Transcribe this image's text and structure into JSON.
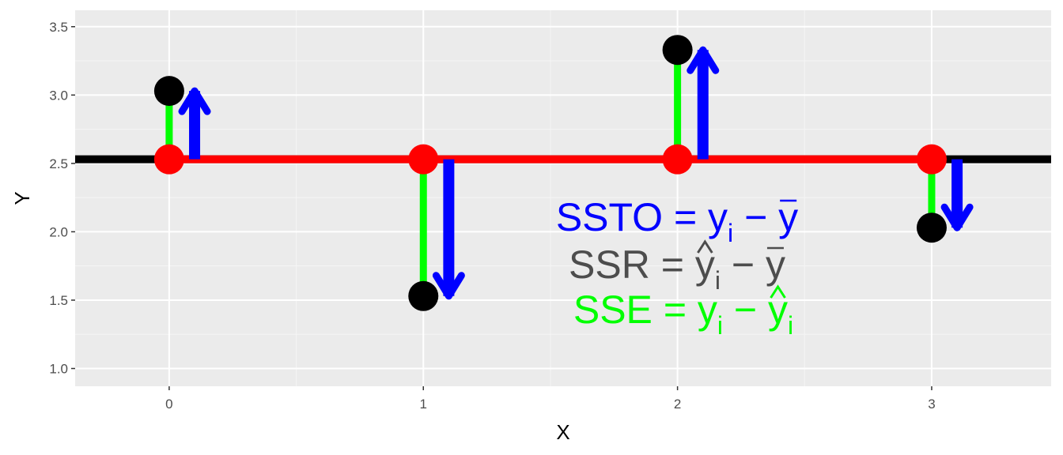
{
  "chart_data": {
    "type": "scatter",
    "title": "",
    "xlabel": "X",
    "ylabel": "Y",
    "xlim": [
      -0.37,
      3.47
    ],
    "ylim": [
      0.87,
      3.62
    ],
    "x_ticks": [
      0,
      1,
      2,
      3
    ],
    "x_tick_labels": [
      "0",
      "1",
      "2",
      "3"
    ],
    "y_ticks": [
      1.0,
      1.5,
      2.0,
      2.5,
      3.0,
      3.5
    ],
    "y_tick_labels": [
      "1.0",
      "1.5",
      "2.0",
      "2.5",
      "3.0",
      "3.5"
    ],
    "grid": true,
    "mean_y": 2.53,
    "observed": {
      "x": [
        0,
        1,
        2,
        3
      ],
      "y": [
        3.03,
        1.53,
        3.33,
        2.03
      ],
      "color": "#000000"
    },
    "fitted": {
      "x": [
        0,
        1,
        2,
        3
      ],
      "y": [
        2.53,
        2.53,
        2.53,
        2.53
      ],
      "color": "#ff0000"
    },
    "sse_segments": {
      "color": "#00ff00"
    },
    "ssto_arrows": {
      "color": "#0000ff",
      "x_offset": 0.1
    },
    "mean_line": {
      "color": "#000000"
    },
    "annotations": [
      {
        "lhs": "SSTO",
        "eq": "=",
        "t1": "y",
        "t1_sub": "i",
        "minus": "−",
        "t2": "y",
        "t2_sub": "",
        "t1_hat": false,
        "t1_bar": false,
        "t2_hat": false,
        "t2_bar": true,
        "color": "#0000ff"
      },
      {
        "lhs": "SSR",
        "eq": "=",
        "t1": "y",
        "t1_sub": "i",
        "minus": "−",
        "t2": "y",
        "t2_sub": "",
        "t1_hat": true,
        "t1_bar": false,
        "t2_hat": false,
        "t2_bar": true,
        "color": "#4d4d4d"
      },
      {
        "lhs": "SSE",
        "eq": "=",
        "t1": "y",
        "t1_sub": "i",
        "minus": "−",
        "t2": "y",
        "t2_sub": "i",
        "t1_hat": false,
        "t1_bar": false,
        "t2_hat": true,
        "t2_bar": false,
        "color": "#00ff00"
      }
    ]
  }
}
